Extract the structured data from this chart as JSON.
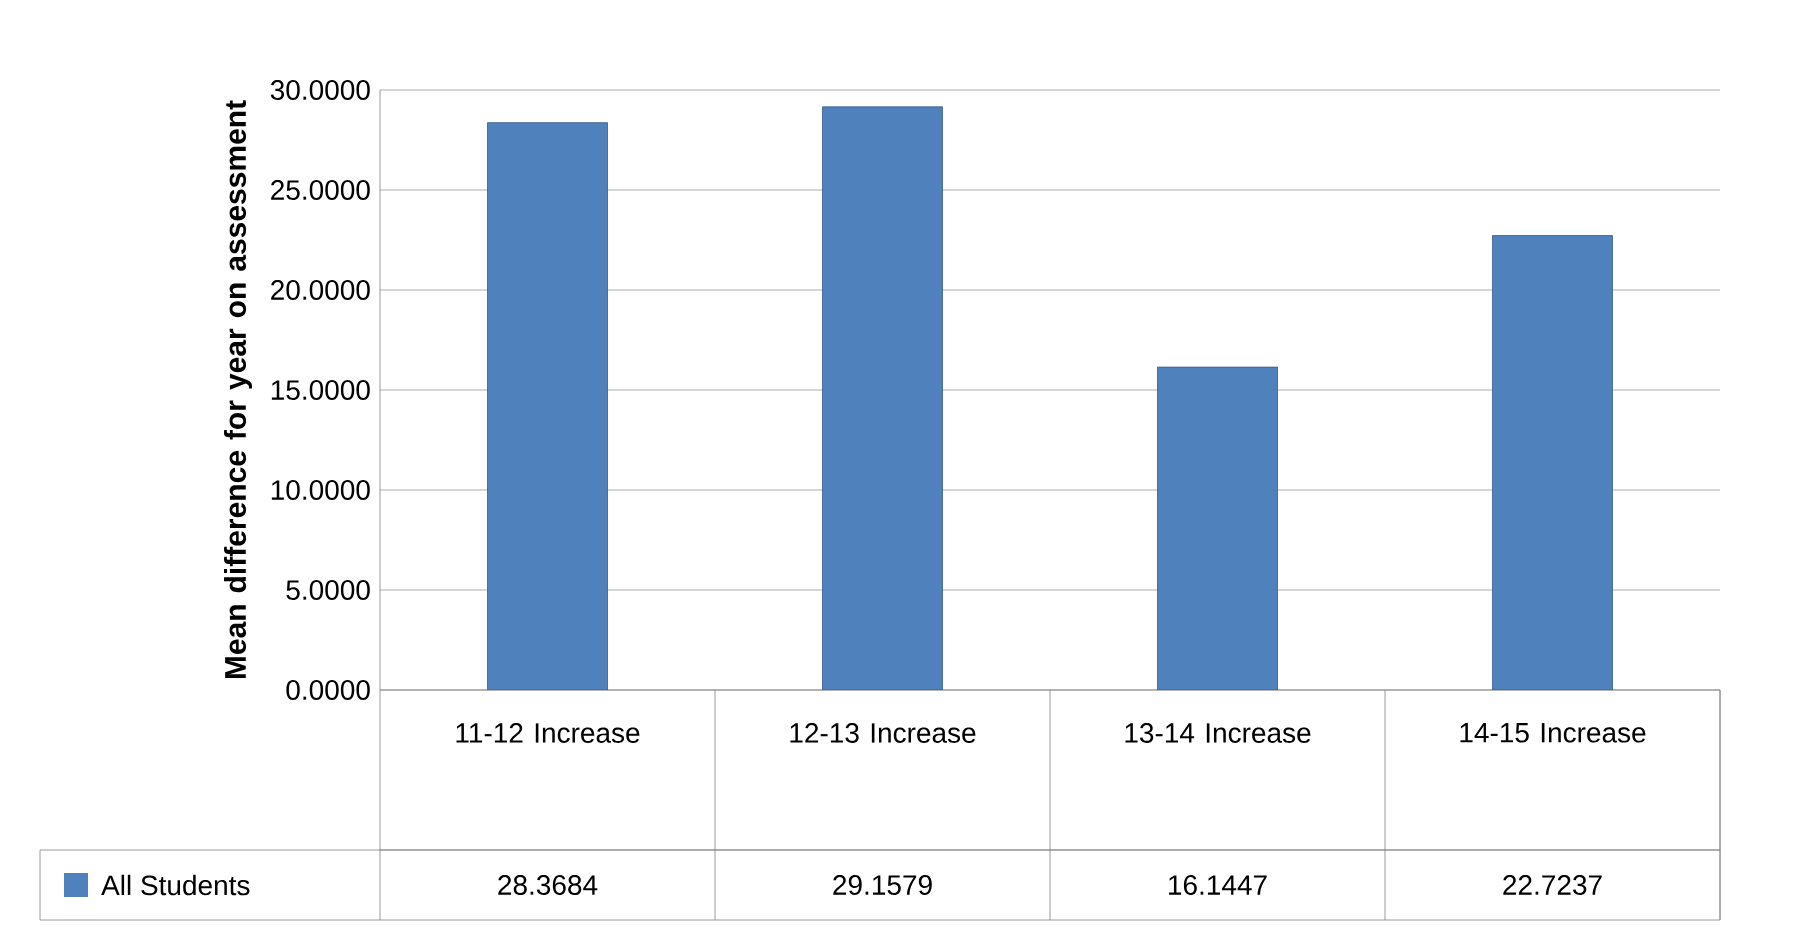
{
  "chart_data": {
    "type": "bar",
    "ylabel": "Mean difference for year on assessment",
    "categories": [
      "11-12 Increase",
      "12-13 Increase",
      "13-14 Increase",
      "14-15 Increase"
    ],
    "series": [
      {
        "name": "All Students",
        "color": "#4f81bd",
        "values": [
          28.3684,
          29.1579,
          16.1447,
          22.7237
        ]
      }
    ],
    "ylim": [
      0,
      30
    ],
    "yticks": [
      {
        "value": 0,
        "label": "0.0000"
      },
      {
        "value": 5,
        "label": "5.0000"
      },
      {
        "value": 10,
        "label": "10.0000"
      },
      {
        "value": 15,
        "label": "15.0000"
      },
      {
        "value": 20,
        "label": "20.0000"
      },
      {
        "value": 25,
        "label": "25.0000"
      },
      {
        "value": 30,
        "label": "30.0000"
      }
    ],
    "grid": "y",
    "legend": "bottom",
    "data_labels": true
  }
}
